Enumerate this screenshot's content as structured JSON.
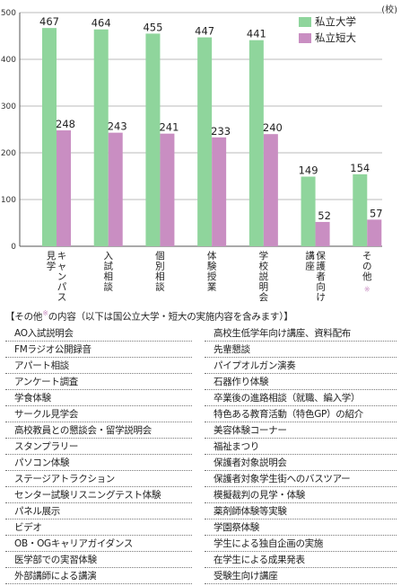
{
  "chart_data": {
    "type": "bar",
    "unit_label": "(校)",
    "categories": [
      "キャンパス見学",
      "入試相談",
      "個別相談",
      "体験授業",
      "学校説明会",
      "保護者向け講座",
      "その他"
    ],
    "category_marks": [
      "",
      "",
      "",
      "",
      "",
      "",
      "※"
    ],
    "series": [
      {
        "name": "私立大学",
        "values": [
          467,
          464,
          455,
          447,
          441,
          149,
          154
        ],
        "color": "#8fd59c"
      },
      {
        "name": "私立短大",
        "values": [
          248,
          243,
          241,
          233,
          240,
          52,
          57
        ],
        "color": "#c98ec2"
      }
    ],
    "ylim": [
      0,
      500
    ],
    "yticks": [
      0,
      100,
      200,
      300,
      400,
      500
    ],
    "grid": true,
    "legend_position": "top-right"
  },
  "note": {
    "title": "【その他",
    "title_mark": "※",
    "title_rest": "の内容（以下は国公立大学・短大の実施内容を含みます）】",
    "items_left": [
      "AO入試説明会",
      "FMラジオ公開録音",
      "アパート相談",
      "アンケート調査",
      "学食体験",
      "サークル見学会",
      "高校教員との懇談会・留学説明会",
      "スタンプラリー",
      "パソコン体験",
      "ステージアトラクション",
      "センター試験リスニングテスト体験",
      "パネル展示",
      "ビデオ",
      "OB・OGキャリアガイダンス",
      "医学部での実習体験",
      "外部講師による講演"
    ],
    "items_right": [
      "高校生低学年向け講座、資料配布",
      "先輩懇談",
      "パイプオルガン演奏",
      "石器作り体験",
      "卒業後の進路相談（就職、編入学）",
      "特色ある教育活動（特色GP）の紹介",
      "美容体験コーナー",
      "福祉まつり",
      "保護者対象説明会",
      "保護者対象学生街へのバスツアー",
      "模擬裁判の見学・体験",
      "薬剤師体験等実験",
      "学園祭体験",
      "学生による独自企画の実施",
      "在学生による成果発表",
      "受験生向け講座"
    ],
    "mark_color": "#c98ec2"
  }
}
